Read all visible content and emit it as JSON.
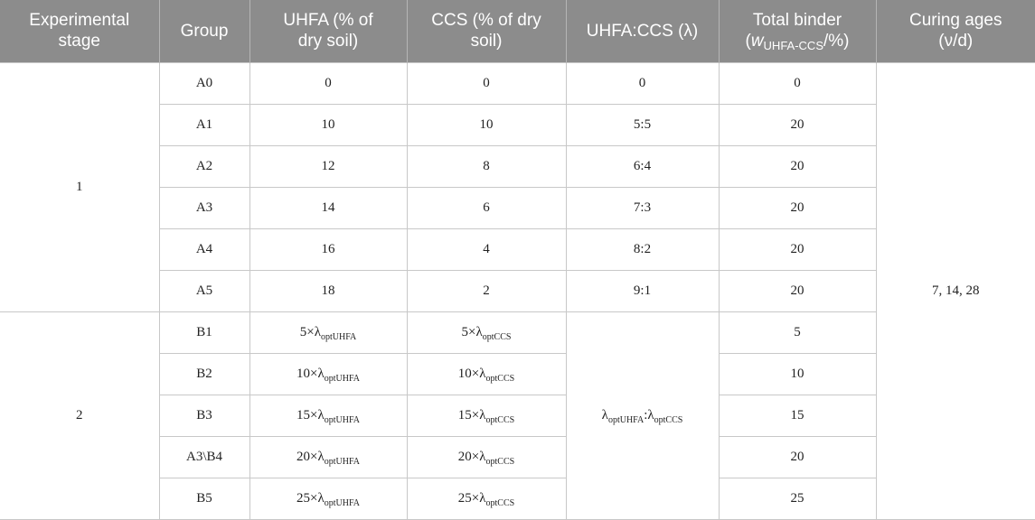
{
  "headers": [
    {
      "line1": "Experimental",
      "line2": "stage"
    },
    {
      "line1": "Group",
      "line2": ""
    },
    {
      "line1": "UHFA (% of",
      "line2": "dry soil)"
    },
    {
      "line1": "CCS (% of dry",
      "line2": "soil)"
    },
    {
      "line1": "UHFA:CCS (λ)",
      "line2": ""
    },
    {
      "line1": "Total binder",
      "line2_pre": "(",
      "line2_italic": "w",
      "line2_sub": "UHFA-CCS",
      "line2_post": "/%)"
    },
    {
      "line1": "Curing ages",
      "line2": "(ν/d)"
    }
  ],
  "stage1": {
    "label": "1",
    "rows": [
      {
        "group": "A0",
        "uhfa": "0",
        "ccs": "0",
        "ratio": "0",
        "total": "0"
      },
      {
        "group": "A1",
        "uhfa": "10",
        "ccs": "10",
        "ratio": "5:5",
        "total": "20"
      },
      {
        "group": "A2",
        "uhfa": "12",
        "ccs": "8",
        "ratio": "6:4",
        "total": "20"
      },
      {
        "group": "A3",
        "uhfa": "14",
        "ccs": "6",
        "ratio": "7:3",
        "total": "20"
      },
      {
        "group": "A4",
        "uhfa": "16",
        "ccs": "4",
        "ratio": "8:2",
        "total": "20"
      },
      {
        "group": "A5",
        "uhfa": "18",
        "ccs": "2",
        "ratio": "9:1",
        "total": "20"
      }
    ]
  },
  "curing_ages": "7, 14, 28",
  "stage2": {
    "label": "2",
    "lambda": "λ",
    "sub_uhfa": "optUHFA",
    "sub_ccs": "optCCS",
    "ratio_sep": ":",
    "rows": [
      {
        "group": "B1",
        "uhfa_prefix": "5×",
        "ccs_prefix": "5×",
        "total": "5"
      },
      {
        "group": "B2",
        "uhfa_prefix": "10×",
        "ccs_prefix": "10×",
        "total": "10"
      },
      {
        "group": "B3",
        "uhfa_prefix": "15×",
        "ccs_prefix": "15×",
        "total": "15"
      },
      {
        "group": "A3\\B4",
        "uhfa_prefix": "20×",
        "ccs_prefix": "20×",
        "total": "20"
      },
      {
        "group": "B5",
        "uhfa_prefix": "25×",
        "ccs_prefix": "25×",
        "total": "25"
      }
    ]
  }
}
